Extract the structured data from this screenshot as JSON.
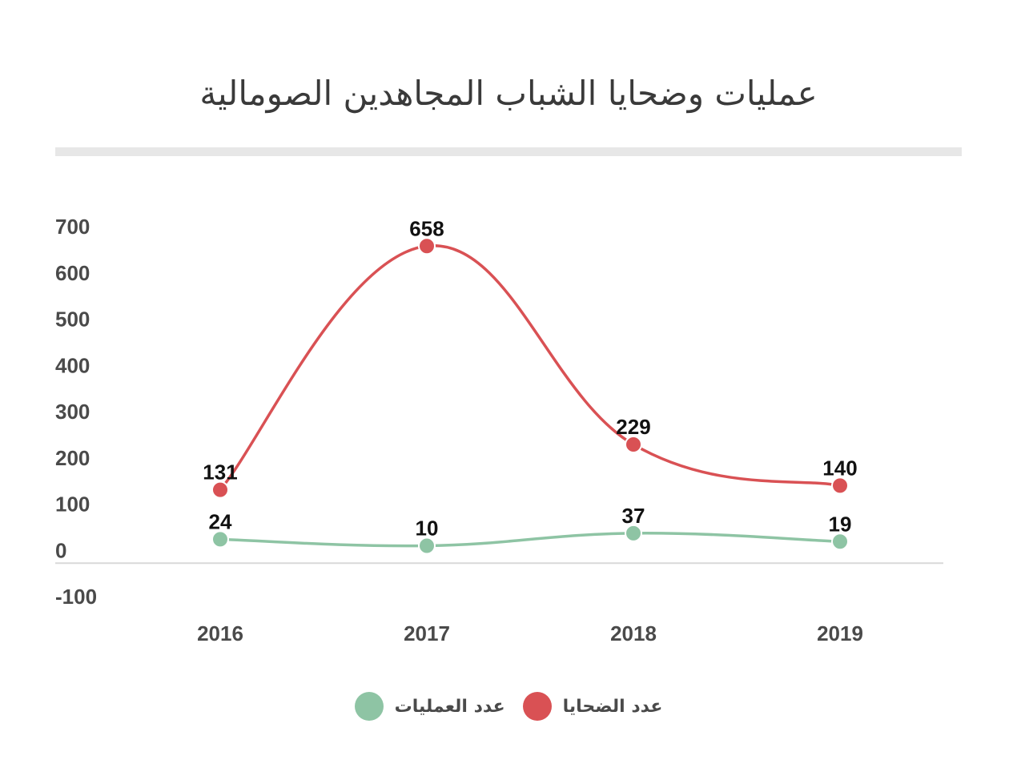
{
  "title": "عمليات وضحايا الشباب المجاهدين الصومالية",
  "chart_data": {
    "type": "line",
    "title": "عمليات وضحايا الشباب المجاهدين الصومالية",
    "categories": [
      "2016",
      "2017",
      "2018",
      "2019"
    ],
    "ylim": [
      -100,
      700
    ],
    "yticks": [
      700,
      600,
      500,
      400,
      300,
      200,
      100,
      0,
      -100
    ],
    "grid": false,
    "legend_position": "bottom",
    "series": [
      {
        "name": "عدد الضحايا",
        "values": [
          131,
          658,
          229,
          140
        ],
        "color": "#d95154"
      },
      {
        "name": "عدد العمليات",
        "values": [
          24,
          10,
          37,
          19
        ],
        "color": "#8ec4a4"
      }
    ]
  },
  "legend": {
    "victims_label": "عدد الضحايا",
    "victims_color": "#d95154",
    "operations_label": "عدد العمليات",
    "operations_color": "#8ec4a4"
  }
}
